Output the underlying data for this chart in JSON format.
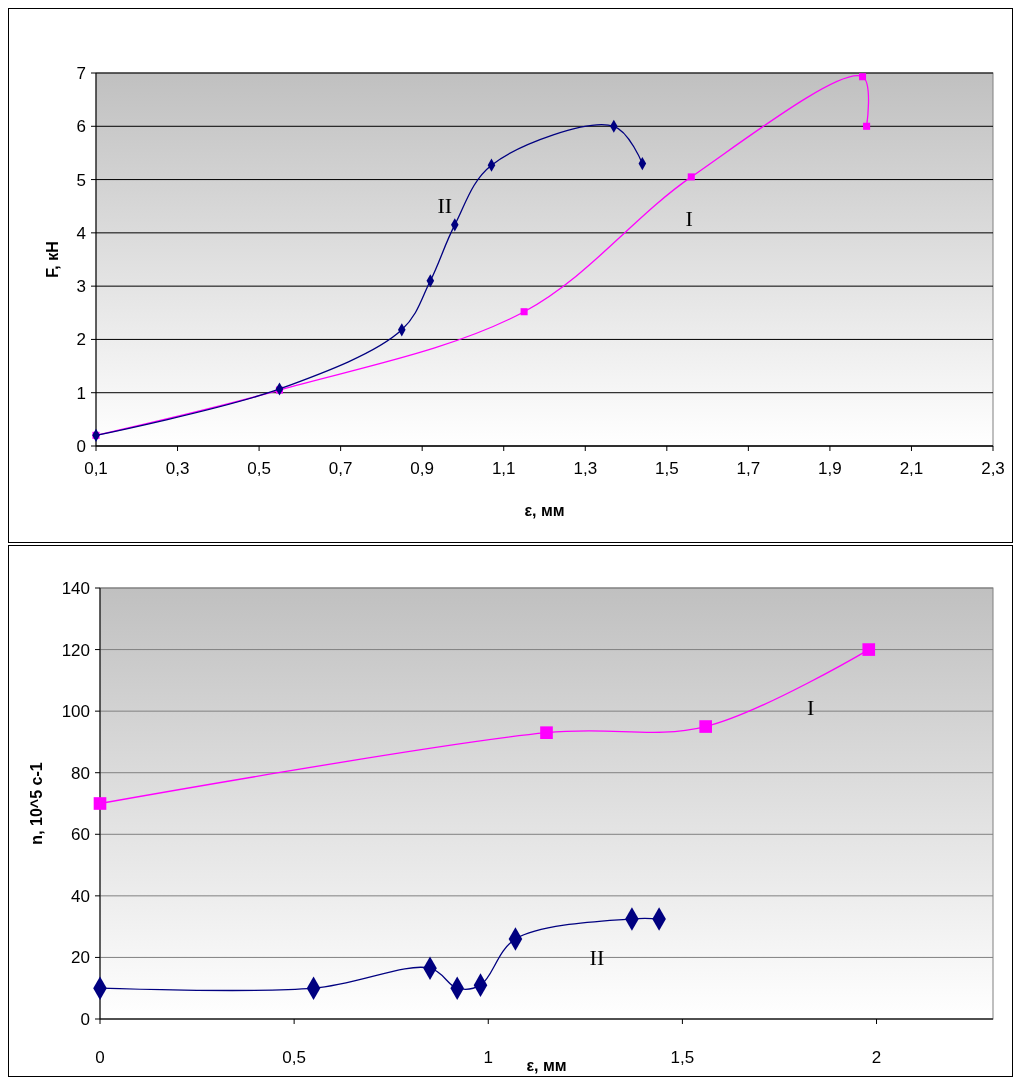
{
  "chart_data": [
    {
      "type": "line",
      "xlabel": "ε, мм",
      "ylabel": "F, кН",
      "xlim": [
        0.1,
        2.3
      ],
      "ylim": [
        0,
        7
      ],
      "xticks": [
        {
          "value": 0.1,
          "label": "0,1"
        },
        {
          "value": 0.3,
          "label": "0,3"
        },
        {
          "value": 0.5,
          "label": "0,5"
        },
        {
          "value": 0.7,
          "label": "0,7"
        },
        {
          "value": 0.9,
          "label": "0,9"
        },
        {
          "value": 1.1,
          "label": "1,1"
        },
        {
          "value": 1.3,
          "label": "1,3"
        },
        {
          "value": 1.5,
          "label": "1,5"
        },
        {
          "value": 1.7,
          "label": "1,7"
        },
        {
          "value": 1.9,
          "label": "1,9"
        },
        {
          "value": 2.1,
          "label": "2,1"
        },
        {
          "value": 2.3,
          "label": "2,3"
        }
      ],
      "yticks": [
        0,
        1,
        2,
        3,
        4,
        5,
        6,
        7
      ],
      "grid": "y",
      "series": [
        {
          "name": "I",
          "color": "#ff00ff",
          "marker": "square",
          "x": [
            0.1,
            0.55,
            1.15,
            1.56,
            1.98,
            1.99
          ],
          "values": [
            0.2,
            1.05,
            2.52,
            5.05,
            6.93,
            6.0
          ]
        },
        {
          "name": "II",
          "color": "#000080",
          "marker": "diamond",
          "x": [
            0.1,
            0.55,
            0.85,
            0.92,
            0.98,
            1.07,
            1.37,
            1.44
          ],
          "values": [
            0.2,
            1.07,
            2.18,
            3.1,
            4.15,
            5.27,
            6.0,
            5.3
          ]
        }
      ]
    },
    {
      "type": "line",
      "xlabel": "ε, мм",
      "ylabel": "n, 10^5  c-1",
      "xlim": [
        0,
        2.3
      ],
      "ylim": [
        0,
        140
      ],
      "xticks": [
        0,
        {
          "value": 0.5,
          "label": "0,5"
        },
        1,
        {
          "value": 1.5,
          "label": "1,5"
        },
        2
      ],
      "yticks": [
        0,
        20,
        40,
        60,
        80,
        100,
        120,
        140
      ],
      "grid": "y",
      "series": [
        {
          "name": "I",
          "color": "#ff00ff",
          "marker": "square",
          "x": [
            0,
            1.15,
            1.56,
            1.98
          ],
          "values": [
            70,
            93,
            95,
            120
          ]
        },
        {
          "name": "II",
          "color": "#000080",
          "marker": "diamond",
          "x": [
            0,
            0.55,
            0.85,
            0.92,
            0.98,
            1.07,
            1.37,
            1.44
          ],
          "values": [
            10,
            10,
            16.5,
            10,
            11,
            26,
            32.5,
            32.5
          ]
        }
      ]
    }
  ]
}
